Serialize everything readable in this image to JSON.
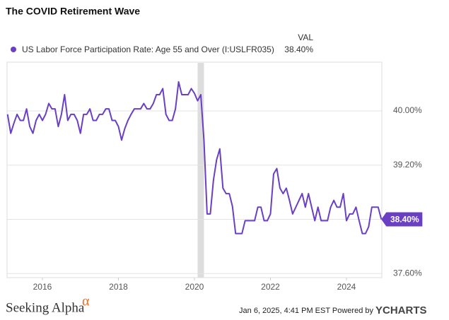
{
  "chart_data": {
    "type": "line",
    "title": "The COVID Retirement Wave",
    "legend_header": "VAL",
    "x": [
      2015.083,
      2015.167,
      2015.25,
      2015.333,
      2015.417,
      2015.5,
      2015.583,
      2015.667,
      2015.75,
      2015.833,
      2015.917,
      2016,
      2016.083,
      2016.167,
      2016.25,
      2016.333,
      2016.417,
      2016.5,
      2016.583,
      2016.667,
      2016.75,
      2016.833,
      2016.917,
      2017,
      2017.083,
      2017.167,
      2017.25,
      2017.333,
      2017.417,
      2017.5,
      2017.583,
      2017.667,
      2017.75,
      2017.833,
      2017.917,
      2018,
      2018.083,
      2018.167,
      2018.25,
      2018.333,
      2018.417,
      2018.5,
      2018.583,
      2018.667,
      2018.75,
      2018.833,
      2018.917,
      2019,
      2019.083,
      2019.167,
      2019.25,
      2019.333,
      2019.417,
      2019.5,
      2019.583,
      2019.667,
      2019.75,
      2019.833,
      2019.917,
      2020,
      2020.083,
      2020.167,
      2020.25,
      2020.333,
      2020.417,
      2020.5,
      2020.583,
      2020.667,
      2020.75,
      2020.833,
      2020.917,
      2021,
      2021.083,
      2021.167,
      2021.25,
      2021.333,
      2021.417,
      2021.5,
      2021.583,
      2021.667,
      2021.75,
      2021.833,
      2021.917,
      2022,
      2022.083,
      2022.167,
      2022.25,
      2022.333,
      2022.417,
      2022.5,
      2022.583,
      2022.667,
      2022.75,
      2022.833,
      2022.917,
      2023,
      2023.083,
      2023.167,
      2023.25,
      2023.333,
      2023.417,
      2023.5,
      2023.583,
      2023.667,
      2023.75,
      2023.833,
      2023.917,
      2024,
      2024.083,
      2024.167,
      2024.25,
      2024.333,
      2024.417,
      2024.5,
      2024.583,
      2024.667,
      2024.75,
      2024.833,
      2024.917
    ],
    "series": [
      {
        "name": "US Labor Force Participation Rate: Age 55 and Over (I:USLFR035)",
        "color": "#6a3fc4",
        "values": [
          39.95,
          39.67,
          39.82,
          39.95,
          39.86,
          39.86,
          40.03,
          39.77,
          39.67,
          39.86,
          39.95,
          39.86,
          39.95,
          40.11,
          40.03,
          40.03,
          39.77,
          39.95,
          40.24,
          39.86,
          39.95,
          39.95,
          39.86,
          39.67,
          39.95,
          39.95,
          40.03,
          39.86,
          39.86,
          39.95,
          39.95,
          40.03,
          40.03,
          39.86,
          39.86,
          39.77,
          39.57,
          39.74,
          39.86,
          39.95,
          40.03,
          40.03,
          40.03,
          40.11,
          40.03,
          40.03,
          40.11,
          40.24,
          40.24,
          40.33,
          39.95,
          39.86,
          39.86,
          40.03,
          40.43,
          40.24,
          40.24,
          40.24,
          40.33,
          40.26,
          40.15,
          40.24,
          39.57,
          38.48,
          38.48,
          38.98,
          39.28,
          39.44,
          38.86,
          38.78,
          38.78,
          38.59,
          38.19,
          38.19,
          38.19,
          38.38,
          38.38,
          38.38,
          38.38,
          38.58,
          38.58,
          38.38,
          38.38,
          38.48,
          39.07,
          39.15,
          38.86,
          38.78,
          38.86,
          38.68,
          38.48,
          38.58,
          38.68,
          38.78,
          38.58,
          38.78,
          38.58,
          38.38,
          38.58,
          38.38,
          38.38,
          38.38,
          38.58,
          38.68,
          38.58,
          38.58,
          38.78,
          38.38,
          38.48,
          38.48,
          38.58,
          38.38,
          38.19,
          38.19,
          38.29,
          38.58,
          38.58,
          38.58,
          38.4
        ],
        "last_label": "38.40%"
      }
    ],
    "shaded": [
      2020.083,
      2020.25
    ],
    "xlim": [
      2015.07,
      2024.93
    ],
    "xticks": [
      2016,
      2018,
      2020,
      2022,
      2024
    ],
    "ylim": [
      37.54,
      40.72
    ],
    "yticks": [
      {
        "value": 37.6,
        "label": "37.60%"
      },
      {
        "value": 38.4,
        "label": "38.40%"
      },
      {
        "value": 39.2,
        "label": "39.20%"
      },
      {
        "value": 40,
        "label": "40.00%"
      }
    ],
    "grid": true,
    "footer": {
      "logo": "Seeking Alpha",
      "logo_mark": "α",
      "timestamp": "Jan 6, 2025, 4:41 PM EST Powered by",
      "brand": "YCHARTS"
    }
  }
}
